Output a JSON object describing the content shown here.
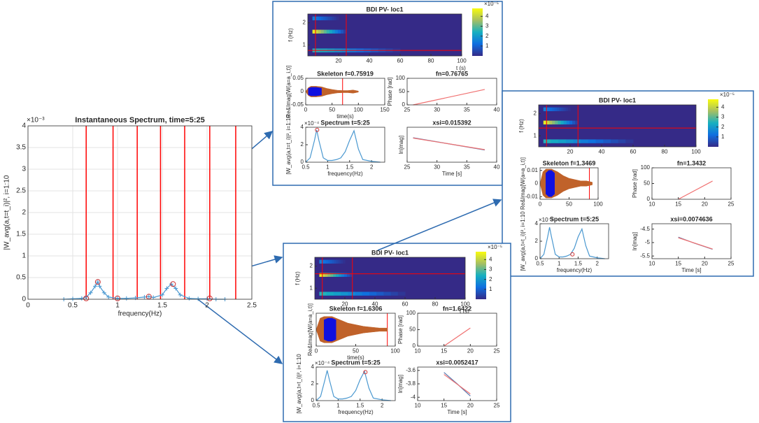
{
  "chart_data": [
    {
      "type": "line",
      "title": "Instantaneous Spectrum, time=5:25",
      "xlabel": "frequency(Hz)",
      "ylabel": "|W_avg(a,t=t_i)|², i=1:10",
      "y_exponent": "×10⁻³",
      "xlim": [
        0,
        2.5
      ],
      "ylim": [
        0,
        4
      ],
      "xticks": [
        0,
        0.5,
        1,
        1.5,
        2,
        2.5
      ],
      "yticks": [
        0,
        0.5,
        1,
        1.5,
        2,
        2.5,
        3,
        3.5,
        4
      ],
      "grid": true,
      "vlines": [
        0.65,
        0.95,
        1.22,
        1.48,
        1.75,
        2.03,
        2.32
      ],
      "vline_color": "#ff0000",
      "x": [
        0.4,
        0.5,
        0.6,
        0.65,
        0.7,
        0.75,
        0.78,
        0.8,
        0.85,
        0.9,
        1.0,
        1.1,
        1.2,
        1.3,
        1.35,
        1.4,
        1.5,
        1.55,
        1.6,
        1.65,
        1.7,
        1.8,
        1.9,
        2.0,
        2.1,
        2.2
      ],
      "series": [
        {
          "color": "#4a98d0",
          "values": [
            0,
            0.01,
            0.02,
            0.05,
            0.15,
            0.3,
            0.4,
            0.3,
            0.15,
            0.05,
            0.02,
            0.02,
            0.03,
            0.05,
            0.06,
            0.04,
            0.1,
            0.25,
            0.35,
            0.25,
            0.1,
            0.02,
            0.01,
            0.01,
            0,
            0
          ],
          "crosses": true
        }
      ],
      "markers": {
        "color": "#d03030",
        "x": [
          0.65,
          0.78,
          1.0,
          1.35,
          1.62,
          2.03
        ],
        "values": [
          0.02,
          0.4,
          0.02,
          0.06,
          0.35,
          0.02
        ]
      }
    },
    {
      "type": "heatmap",
      "title": "BDI PV- loc1",
      "xlabel": "t (s)",
      "ylabel": "f (Hz)",
      "xlim": [
        0,
        100
      ],
      "ylim": [
        0.5,
        2.4
      ],
      "xticks": [
        20,
        40,
        60,
        80,
        100
      ],
      "yticks": [
        1,
        2
      ],
      "zlim": [
        0,
        4.8
      ],
      "zticks": [
        1,
        2,
        3,
        4
      ],
      "z_exponent": "×10⁻⁵",
      "vlines": [
        5,
        25
      ],
      "hlines": [
        0.75
      ],
      "bands": [
        {
          "f": 1.6,
          "t": [
            3,
            25
          ],
          "z": 4.5
        },
        {
          "f": 0.75,
          "t": [
            3,
            60
          ],
          "z": 2.5
        },
        {
          "f": 2.2,
          "t": [
            3,
            20
          ],
          "z": 1.5
        }
      ]
    },
    {
      "type": "line",
      "title": "Skeleton f=0.75919",
      "xlabel": "time(s)",
      "ylabel": "Re&Imag[W(a=a_i,t)]",
      "xlim": [
        0,
        150
      ],
      "ylim": [
        -0.05,
        0.05
      ],
      "xticks": [
        0,
        50,
        100,
        150
      ],
      "yticks": [
        -0.05,
        0,
        0.05
      ],
      "vlines": [
        70
      ],
      "vline_color": "#ff0000",
      "series": [
        {
          "style": "envelope",
          "color": "#c0622a",
          "x": [
            0,
            5,
            10,
            20,
            30,
            40,
            50,
            60,
            70,
            80,
            90,
            100
          ],
          "values": [
            0,
            0.015,
            0.02,
            0.02,
            0.018,
            0.012,
            0.008,
            0.005,
            0.004,
            0.004,
            0.006,
            0.002
          ]
        },
        {
          "style": "envelope",
          "color": "#1010e0",
          "x": [
            5,
            10,
            20,
            30
          ],
          "values": [
            0.012,
            0.016,
            0.016,
            0.013
          ]
        }
      ]
    },
    {
      "type": "line",
      "title": "fn=0.76765",
      "ylabel": "Phase [rad]",
      "xlim": [
        25,
        40
      ],
      "ylim": [
        0,
        100
      ],
      "xticks": [
        25,
        30,
        35,
        40
      ],
      "yticks": [
        0,
        50,
        100
      ],
      "series": [
        {
          "color": "#f07070",
          "x": [
            26,
            38
          ],
          "values": [
            0,
            58
          ]
        }
      ]
    },
    {
      "type": "line",
      "title": "Spectrum t=5:25",
      "xlabel": "frequency(Hz)",
      "ylabel": "|W_avg(a,t=t_i)|², i=1:10",
      "y_exponent": "×10⁻⁴",
      "xlim": [
        0.5,
        2.3
      ],
      "ylim": [
        0,
        4
      ],
      "xticks": [
        0.5,
        1,
        1.5,
        2
      ],
      "yticks": [
        0,
        2,
        4
      ],
      "x": [
        0.5,
        0.6,
        0.7,
        0.75,
        0.8,
        0.9,
        1.0,
        1.1,
        1.2,
        1.3,
        1.4,
        1.5,
        1.6,
        1.7,
        1.8,
        2.0,
        2.2
      ],
      "series": [
        {
          "color": "#4a98d0",
          "values": [
            0,
            0.5,
            2.5,
            3.7,
            2.5,
            0.5,
            0.2,
            0.2,
            0.3,
            0.5,
            1.2,
            2.5,
            3.6,
            1.5,
            0.3,
            0.1,
            0
          ]
        }
      ],
      "markers": {
        "color": "#d03030",
        "x": [
          0.76
        ],
        "values": [
          3.7
        ]
      }
    },
    {
      "type": "line",
      "title": "xsi=0.015392",
      "xlabel": "Time [s]",
      "ylabel": "ln[mag]",
      "xlim": [
        25,
        40
      ],
      "ylim": [
        -5,
        -3
      ],
      "xticks": [
        25,
        30,
        35,
        40
      ],
      "series": [
        {
          "color": "#5a7ab0",
          "x": [
            26,
            32,
            38
          ],
          "values": [
            -3.6,
            -3.95,
            -4.3
          ]
        },
        {
          "color": "#f07070",
          "x": [
            26,
            38
          ],
          "values": [
            -3.62,
            -4.28
          ]
        }
      ]
    },
    {
      "type": "heatmap",
      "title": "BDI PV- loc1",
      "ylabel": "f (Hz)",
      "xlim": [
        0,
        100
      ],
      "ylim": [
        0.5,
        2.4
      ],
      "xticks": [
        20,
        40,
        60,
        80,
        100
      ],
      "yticks": [
        1,
        2
      ],
      "zlim": [
        0,
        4.8
      ],
      "zticks": [
        1,
        2,
        3,
        4
      ],
      "z_exponent": "×10⁻⁵",
      "vlines": [
        5,
        25
      ],
      "hlines": [
        1.35
      ],
      "bands": [
        {
          "f": 1.6,
          "t": [
            3,
            25
          ],
          "z": 4.5
        },
        {
          "f": 0.75,
          "t": [
            3,
            60
          ],
          "z": 2.5
        },
        {
          "f": 2.2,
          "t": [
            3,
            20
          ],
          "z": 1.5
        }
      ]
    },
    {
      "type": "line",
      "title": "Skeleton f=1.3469",
      "ylabel": "Re&Imag[W(a=a_i,t)]",
      "xlim": [
        0,
        100
      ],
      "ylim": [
        -0.012,
        0.012
      ],
      "xticks": [
        0,
        50,
        100
      ],
      "yticks": [
        -0.01,
        0,
        0.01
      ],
      "vlines": [
        85
      ],
      "vline_color": "#ff0000",
      "series": [
        {
          "style": "envelope",
          "color": "#c0622a",
          "x": [
            0,
            5,
            10,
            20,
            30,
            40,
            50,
            60,
            70,
            80,
            90
          ],
          "values": [
            0,
            0.009,
            0.011,
            0.011,
            0.009,
            0.006,
            0.004,
            0.003,
            0.002,
            0.002,
            0.001
          ]
        },
        {
          "style": "envelope",
          "color": "#1010e0",
          "x": [
            10,
            15,
            20,
            25
          ],
          "values": [
            0.008,
            0.01,
            0.01,
            0.008
          ]
        }
      ]
    },
    {
      "type": "line",
      "title": "fn=1.3432",
      "ylabel": "Phase [rad]",
      "xlim": [
        10,
        25
      ],
      "ylim": [
        0,
        100
      ],
      "xticks": [
        10,
        15,
        20,
        25
      ],
      "yticks": [
        0,
        50,
        100
      ],
      "series": [
        {
          "color": "#f07070",
          "x": [
            15,
            21.5
          ],
          "values": [
            0,
            58
          ]
        }
      ]
    },
    {
      "type": "line",
      "title": "Spectrum t=5:25",
      "xlabel": "frequency(Hz)",
      "ylabel": "|W_avg(a,t=t_i)|², i=1:10",
      "y_exponent": "×10⁻⁴",
      "xlim": [
        0.5,
        2.3
      ],
      "ylim": [
        0,
        4
      ],
      "xticks": [
        0.5,
        1,
        1.5,
        2
      ],
      "yticks": [
        0,
        2,
        4
      ],
      "x": [
        0.5,
        0.6,
        0.7,
        0.75,
        0.8,
        0.9,
        1.0,
        1.1,
        1.2,
        1.3,
        1.4,
        1.5,
        1.6,
        1.7,
        1.8,
        2.0,
        2.2
      ],
      "series": [
        {
          "color": "#4a98d0",
          "values": [
            0,
            0.5,
            2.5,
            3.6,
            2.5,
            0.5,
            0.2,
            0.2,
            0.3,
            0.5,
            1.2,
            2.5,
            3.4,
            1.5,
            0.3,
            0.1,
            0
          ]
        }
      ],
      "markers": {
        "color": "#d03030",
        "x": [
          1.35
        ],
        "values": [
          0.5
        ]
      }
    },
    {
      "type": "line",
      "title": "xsi=0.0074636",
      "xlabel": "Time [s]",
      "ylabel": "ln[mag]",
      "xlim": [
        10,
        25
      ],
      "ylim": [
        -5.6,
        -4.3
      ],
      "xticks": [
        10,
        15,
        20,
        25
      ],
      "yticks": [
        -5.5,
        -5,
        -4.5
      ],
      "series": [
        {
          "color": "#5a7ab0",
          "x": [
            15,
            18,
            21.5
          ],
          "values": [
            -4.8,
            -5.02,
            -5.25
          ]
        },
        {
          "color": "#f07070",
          "x": [
            15,
            21.5
          ],
          "values": [
            -4.82,
            -5.24
          ]
        }
      ]
    },
    {
      "type": "heatmap",
      "title": "BDI PV- loc1",
      "xlabel": "t (s)",
      "ylabel": "f (Hz)",
      "xlim": [
        0,
        100
      ],
      "ylim": [
        0.5,
        2.4
      ],
      "xticks": [
        20,
        40,
        60,
        80,
        100
      ],
      "yticks": [
        1,
        2
      ],
      "zlim": [
        0,
        4.8
      ],
      "zticks": [
        1,
        2,
        3,
        4
      ],
      "z_exponent": "×10⁻⁵",
      "vlines": [
        5,
        25
      ],
      "hlines": [
        1.65
      ],
      "bands": [
        {
          "f": 1.6,
          "t": [
            3,
            25
          ],
          "z": 4.5
        },
        {
          "f": 0.75,
          "t": [
            3,
            60
          ],
          "z": 2.5
        },
        {
          "f": 2.2,
          "t": [
            3,
            20
          ],
          "z": 1.5
        }
      ]
    },
    {
      "type": "line",
      "title": "Skeleton f=1.6306",
      "xlabel": "time(s)",
      "ylabel": "Re&Imag[W(a=a_i,t)]",
      "xlim": [
        0,
        100
      ],
      "ylim": [
        -0.01,
        0.01
      ],
      "xticks": [
        0,
        50,
        100
      ],
      "vlines": [
        90
      ],
      "vline_color": "#ff0000",
      "series": [
        {
          "style": "envelope",
          "color": "#c0622a",
          "x": [
            0,
            5,
            10,
            20,
            30,
            40,
            50,
            60,
            70,
            80,
            90
          ],
          "values": [
            0,
            0.007,
            0.008,
            0.008,
            0.006,
            0.004,
            0.003,
            0.002,
            0.0015,
            0.001,
            0.001
          ]
        },
        {
          "style": "envelope",
          "color": "#1010e0",
          "x": [
            10,
            15,
            20,
            25
          ],
          "values": [
            0.006,
            0.007,
            0.007,
            0.006
          ]
        }
      ]
    },
    {
      "type": "line",
      "title": "fn=1.6422",
      "ylabel": "Phase [rad]",
      "xlim": [
        10,
        25
      ],
      "ylim": [
        0,
        100
      ],
      "xticks": [
        10,
        15,
        20,
        25
      ],
      "yticks": [
        0,
        50,
        100
      ],
      "series": [
        {
          "color": "#f07070",
          "x": [
            15,
            20
          ],
          "values": [
            0,
            55
          ]
        }
      ]
    },
    {
      "type": "line",
      "title": "Spectrum t=5:25",
      "xlabel": "frequency(Hz)",
      "ylabel": "|W_avg(a,t=t_i)|², i=1:10",
      "y_exponent": "×10⁻⁴",
      "xlim": [
        0.5,
        2.3
      ],
      "ylim": [
        0,
        4
      ],
      "xticks": [
        0.5,
        1,
        1.5,
        2
      ],
      "yticks": [
        0,
        2,
        4
      ],
      "x": [
        0.5,
        0.6,
        0.7,
        0.75,
        0.8,
        0.9,
        1.0,
        1.1,
        1.2,
        1.3,
        1.4,
        1.5,
        1.6,
        1.7,
        1.8,
        2.0,
        2.2
      ],
      "series": [
        {
          "color": "#4a98d0",
          "values": [
            0,
            0.5,
            2.5,
            3.6,
            2.5,
            0.5,
            0.2,
            0.2,
            0.3,
            0.5,
            1.2,
            2.5,
            3.5,
            1.5,
            0.3,
            0.1,
            0
          ]
        }
      ],
      "markers": {
        "color": "#d03030",
        "x": [
          1.62
        ],
        "values": [
          3.4
        ]
      }
    },
    {
      "type": "line",
      "title": "xsi=0.0052417",
      "xlabel": "Time [s]",
      "ylabel": "ln[mag]",
      "xlim": [
        10,
        25
      ],
      "ylim": [
        -4.05,
        -3.55
      ],
      "xticks": [
        10,
        15,
        20,
        25
      ],
      "yticks": [
        -4,
        -3.8,
        -3.6
      ],
      "series": [
        {
          "color": "#5a7ab0",
          "x": [
            15,
            17.5,
            20
          ],
          "values": [
            -3.63,
            -3.8,
            -3.98
          ]
        },
        {
          "color": "#f07070",
          "x": [
            15,
            20
          ],
          "values": [
            -3.66,
            -3.95
          ]
        }
      ]
    }
  ]
}
